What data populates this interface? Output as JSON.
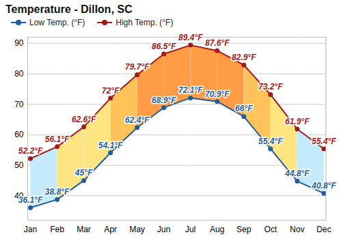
{
  "chart_data": {
    "type": "line",
    "title": "Temperature - Dillon, SC",
    "categories": [
      "Jan",
      "Feb",
      "Mar",
      "Apr",
      "May",
      "Jun",
      "Jul",
      "Aug",
      "Sep",
      "Oct",
      "Nov",
      "Dec"
    ],
    "series": [
      {
        "name": "Low Temp. (°F)",
        "color": "#1f5e9e",
        "marker": "circle",
        "values": [
          36.1,
          38.8,
          45,
          54.1,
          62.4,
          68.9,
          72.1,
          70.9,
          66,
          55.4,
          44.8,
          40.8
        ],
        "value_labels": [
          "36.1°F",
          "38.8°F",
          "45°F",
          "54.1°F",
          "62.4°F",
          "68.9°F",
          "72.1°F",
          "70.9°F",
          "66°F",
          "55.4°F",
          "44.8°F",
          "40.8°F"
        ]
      },
      {
        "name": "High Temp. (°F)",
        "color": "#a31a1a",
        "marker": "circle",
        "values": [
          52.2,
          56.1,
          62.6,
          72,
          79.7,
          86.5,
          89.4,
          87.6,
          82.9,
          73.2,
          61.9,
          55.4
        ],
        "value_labels": [
          "52.2°F",
          "56.1°F",
          "62.6°F",
          "72°F",
          "79.7°F",
          "86.5°F",
          "89.4°F",
          "87.6°F",
          "82.9°F",
          "73.2°F",
          "61.9°F",
          "55.4°F"
        ]
      }
    ],
    "ylim": [
      32,
      92
    ],
    "yticks": [
      40,
      50,
      60,
      70,
      80,
      90
    ],
    "grid": true,
    "legend": "top",
    "data_labels": true
  }
}
